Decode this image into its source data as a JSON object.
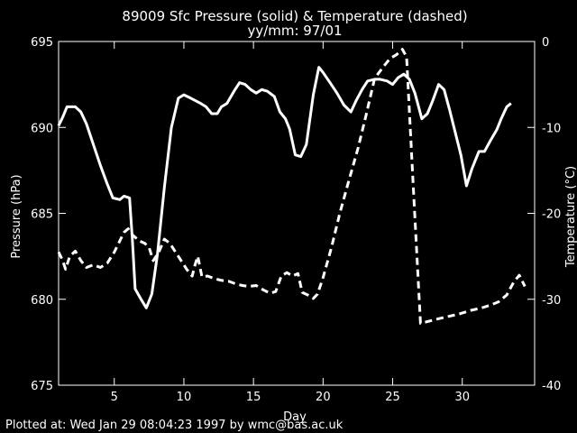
{
  "chart_data": {
    "type": "line",
    "title": "89009 Sfc Pressure (solid) & Temperature (dashed)",
    "subtitle": "yy/mm: 97/01",
    "xlabel": "Day",
    "ylabel": "Pressure (hPa)",
    "y2label": "Temperature (°C)",
    "xlim": [
      1,
      32
    ],
    "ylim": [
      675,
      695
    ],
    "y2lim": [
      -40,
      0
    ],
    "xticks": [
      5,
      10,
      15,
      20,
      25,
      30
    ],
    "yticks": [
      675,
      680,
      685,
      690,
      695
    ],
    "y2ticks": [
      -40,
      -30,
      -20,
      -10,
      0
    ],
    "grid": false,
    "series": [
      {
        "name": "Sfc Pressure",
        "axis": "left",
        "style": "solid",
        "points": [
          [
            1.0,
            690.1
          ],
          [
            1.3,
            690.6
          ],
          [
            1.6,
            691.2
          ],
          [
            2.2,
            691.2
          ],
          [
            2.6,
            690.9
          ],
          [
            3.0,
            690.2
          ],
          [
            3.5,
            689.0
          ],
          [
            4.0,
            687.8
          ],
          [
            4.5,
            686.7
          ],
          [
            4.9,
            685.9
          ],
          [
            5.4,
            685.8
          ],
          [
            5.7,
            686.0
          ],
          [
            6.1,
            685.9
          ],
          [
            6.3,
            683.5
          ],
          [
            6.5,
            680.6
          ],
          [
            7.0,
            679.9
          ],
          [
            7.3,
            679.5
          ],
          [
            7.7,
            680.3
          ],
          [
            8.1,
            682.6
          ],
          [
            8.6,
            686.5
          ],
          [
            9.1,
            690.0
          ],
          [
            9.6,
            691.7
          ],
          [
            10.0,
            691.9
          ],
          [
            10.5,
            691.7
          ],
          [
            11.2,
            691.4
          ],
          [
            11.6,
            691.2
          ],
          [
            12.0,
            690.8
          ],
          [
            12.4,
            690.8
          ],
          [
            12.7,
            691.2
          ],
          [
            13.1,
            691.4
          ],
          [
            13.6,
            692.1
          ],
          [
            14.0,
            692.6
          ],
          [
            14.4,
            692.5
          ],
          [
            14.8,
            692.2
          ],
          [
            15.2,
            692.0
          ],
          [
            15.6,
            692.2
          ],
          [
            16.0,
            692.1
          ],
          [
            16.5,
            691.8
          ],
          [
            16.9,
            690.9
          ],
          [
            17.3,
            690.5
          ],
          [
            17.6,
            689.9
          ],
          [
            18.0,
            688.4
          ],
          [
            18.4,
            688.3
          ],
          [
            18.8,
            689.0
          ],
          [
            19.3,
            691.9
          ],
          [
            19.7,
            693.5
          ],
          [
            20.0,
            693.2
          ],
          [
            20.5,
            692.6
          ],
          [
            21.0,
            692.0
          ],
          [
            21.5,
            691.3
          ],
          [
            22.0,
            690.9
          ],
          [
            22.4,
            691.6
          ],
          [
            22.8,
            692.2
          ],
          [
            23.2,
            692.7
          ],
          [
            23.7,
            692.8
          ],
          [
            24.1,
            692.8
          ],
          [
            24.6,
            692.7
          ],
          [
            25.0,
            692.5
          ],
          [
            25.4,
            692.9
          ],
          [
            25.8,
            693.1
          ],
          [
            26.2,
            692.8
          ],
          [
            26.6,
            692.0
          ],
          [
            27.1,
            690.5
          ],
          [
            27.5,
            690.8
          ],
          [
            27.9,
            691.6
          ],
          [
            28.3,
            692.5
          ],
          [
            28.7,
            692.2
          ],
          [
            29.1,
            691.0
          ],
          [
            29.5,
            689.7
          ],
          [
            29.9,
            688.4
          ],
          [
            30.3,
            686.6
          ],
          [
            30.7,
            687.6
          ],
          [
            31.2,
            688.6
          ],
          [
            31.6,
            688.6
          ],
          [
            32.0,
            689.2
          ],
          [
            32.5,
            689.9
          ],
          [
            32.8,
            690.5
          ],
          [
            33.2,
            691.2
          ],
          [
            33.5,
            691.4
          ]
        ]
      },
      {
        "name": "Temperature",
        "axis": "right",
        "style": "dashed",
        "points": [
          [
            1.0,
            -24.5
          ],
          [
            1.3,
            -25.5
          ],
          [
            1.5,
            -26.5
          ],
          [
            1.8,
            -25.0
          ],
          [
            2.2,
            -24.4
          ],
          [
            2.6,
            -25.5
          ],
          [
            3.0,
            -26.3
          ],
          [
            3.5,
            -26.0
          ],
          [
            4.0,
            -26.3
          ],
          [
            4.5,
            -25.8
          ],
          [
            5.0,
            -24.5
          ],
          [
            5.4,
            -23.2
          ],
          [
            5.7,
            -22.2
          ],
          [
            6.0,
            -21.8
          ],
          [
            6.3,
            -22.5
          ],
          [
            6.8,
            -23.2
          ],
          [
            7.2,
            -23.5
          ],
          [
            7.5,
            -24.0
          ],
          [
            7.8,
            -25.5
          ],
          [
            8.2,
            -24.5
          ],
          [
            8.6,
            -23.0
          ],
          [
            9.0,
            -23.5
          ],
          [
            9.4,
            -24.5
          ],
          [
            9.8,
            -25.5
          ],
          [
            10.2,
            -26.5
          ],
          [
            10.6,
            -27.3
          ],
          [
            10.8,
            -26.0
          ],
          [
            11.0,
            -25.0
          ],
          [
            11.3,
            -27.4
          ],
          [
            11.7,
            -27.3
          ],
          [
            12.2,
            -27.6
          ],
          [
            12.7,
            -27.8
          ],
          [
            13.2,
            -27.9
          ],
          [
            13.7,
            -28.2
          ],
          [
            14.2,
            -28.4
          ],
          [
            14.7,
            -28.5
          ],
          [
            15.2,
            -28.4
          ],
          [
            15.7,
            -28.9
          ],
          [
            16.2,
            -29.3
          ],
          [
            16.6,
            -29.1
          ],
          [
            17.0,
            -27.3
          ],
          [
            17.4,
            -26.9
          ],
          [
            17.8,
            -27.3
          ],
          [
            18.2,
            -27.0
          ],
          [
            18.5,
            -29.2
          ],
          [
            18.9,
            -29.5
          ],
          [
            19.3,
            -29.9
          ],
          [
            19.6,
            -29.4
          ],
          [
            20.0,
            -27.5
          ],
          [
            20.6,
            -24.0
          ],
          [
            21.2,
            -20.0
          ],
          [
            21.8,
            -16.5
          ],
          [
            22.5,
            -12.5
          ],
          [
            23.1,
            -8.5
          ],
          [
            23.7,
            -4.3
          ],
          [
            24.3,
            -3.0
          ],
          [
            24.8,
            -2.0
          ],
          [
            25.3,
            -1.5
          ],
          [
            25.7,
            -0.9
          ],
          [
            26.0,
            -1.8
          ],
          [
            26.5,
            -17.5
          ],
          [
            27.0,
            -32.8
          ],
          [
            27.5,
            -32.6
          ],
          [
            28.2,
            -32.3
          ],
          [
            29.0,
            -32.0
          ],
          [
            29.8,
            -31.7
          ],
          [
            30.6,
            -31.3
          ],
          [
            31.4,
            -31.0
          ],
          [
            32.0,
            -30.7
          ],
          [
            32.6,
            -30.3
          ],
          [
            33.2,
            -29.5
          ],
          [
            33.7,
            -28.0
          ],
          [
            34.1,
            -27.2
          ],
          [
            34.5,
            -28.5
          ]
        ]
      }
    ]
  },
  "footer": "Plotted at: Wed Jan 29 08:04:23 1997 by wmc@bas.ac.uk"
}
